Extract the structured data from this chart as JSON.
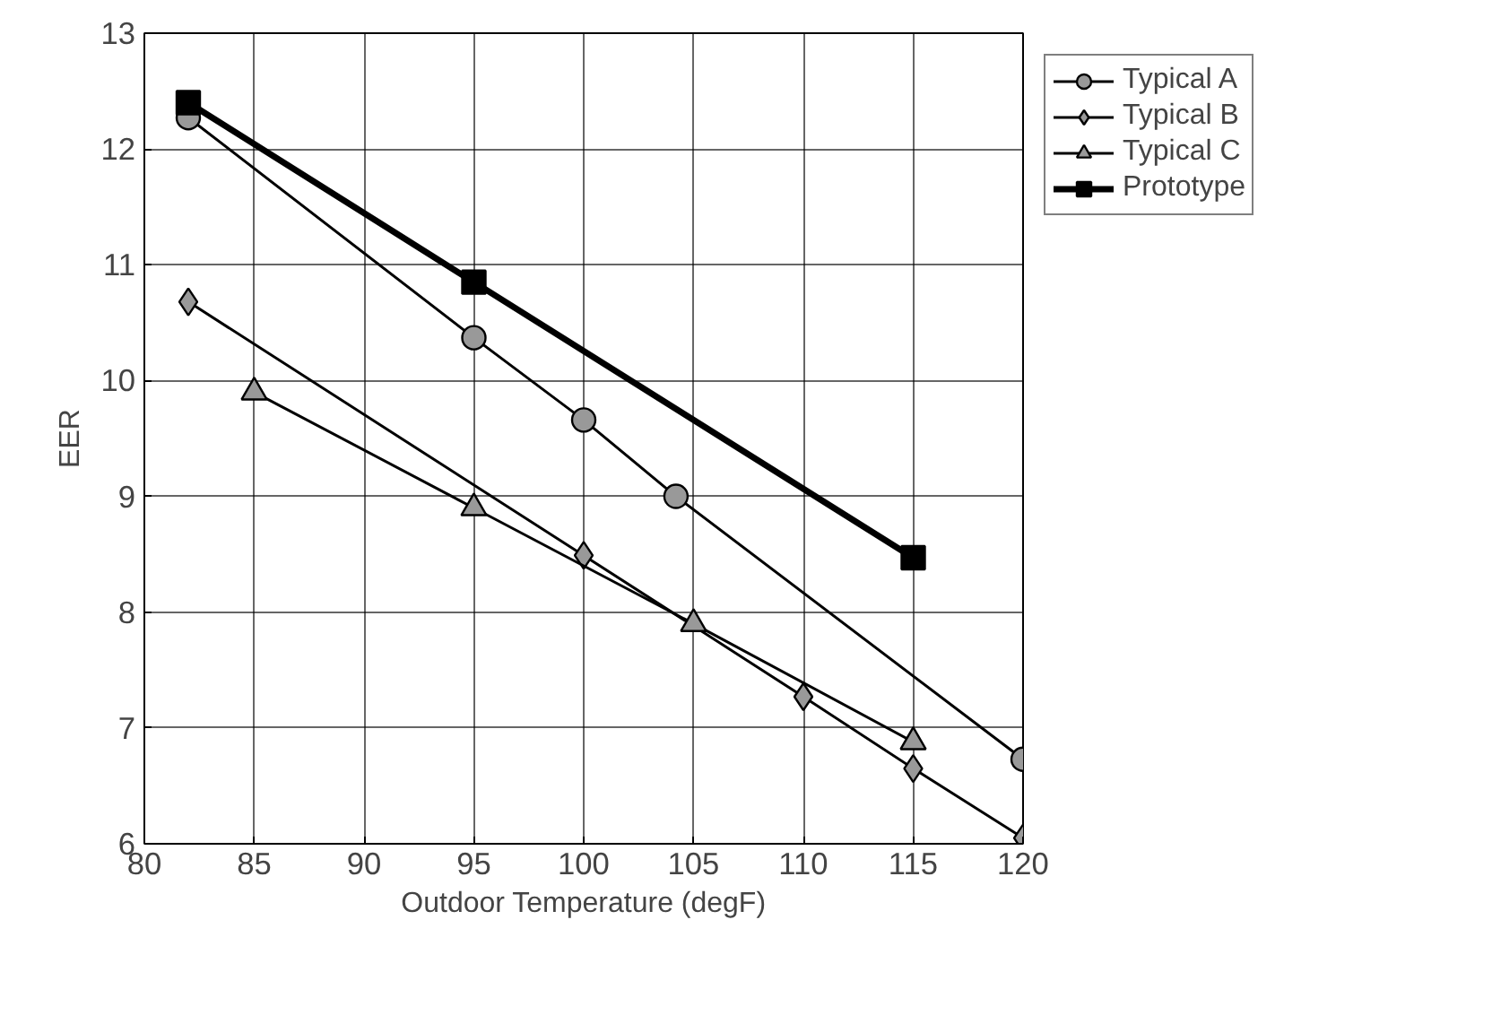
{
  "chart_data": {
    "type": "line",
    "xlabel": "Outdoor Temperature (degF)",
    "ylabel": "EER",
    "xlim": [
      80,
      120
    ],
    "xticks": [
      80,
      85,
      90,
      95,
      100,
      105,
      110,
      115,
      120
    ],
    "ylim": [
      6,
      13
    ],
    "yticks": [
      6,
      7,
      8,
      9,
      10,
      11,
      12,
      13
    ],
    "grid": true,
    "legend": "top right",
    "series": [
      {
        "name": "Typical A",
        "color": "#999999",
        "marker": "circle",
        "x": [
          82,
          95,
          100,
          104.2,
          120
        ],
        "values": [
          12.27,
          10.37,
          9.66,
          9.0,
          6.73
        ]
      },
      {
        "name": "Typical B",
        "color": "#999999",
        "marker": "diamond",
        "x": [
          82,
          100,
          110,
          115,
          120
        ],
        "values": [
          10.68,
          8.49,
          7.27,
          6.65,
          6.05
        ]
      },
      {
        "name": "Typical C",
        "color": "#999999",
        "marker": "triangle",
        "x": [
          85,
          95,
          105,
          115
        ],
        "values": [
          9.9,
          8.9,
          7.9,
          6.88
        ]
      },
      {
        "name": "Prototype",
        "color": "#000000",
        "marker": "square",
        "x": [
          82,
          95,
          115
        ],
        "values": [
          12.4,
          10.85,
          8.47
        ]
      }
    ]
  }
}
